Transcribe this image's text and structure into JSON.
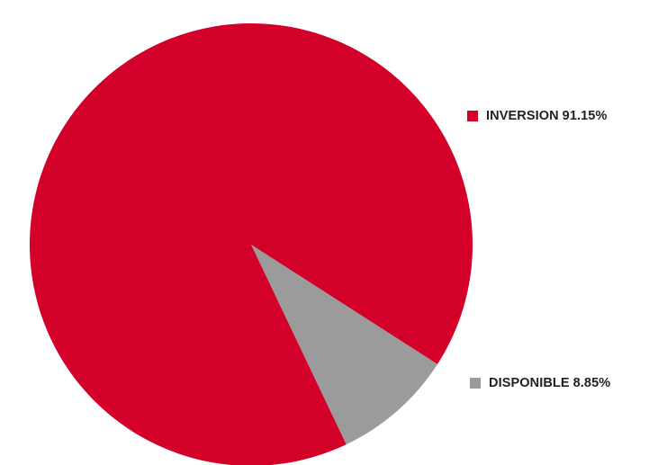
{
  "chart_data": {
    "type": "pie",
    "title": "",
    "slices": [
      {
        "label": "INVERSION",
        "value": 91.15,
        "value_text": "91.15%",
        "color": "#d3002a"
      },
      {
        "label": "DISPONIBLE",
        "value": 8.85,
        "value_text": "8.85%",
        "color": "#9b9b9b"
      }
    ],
    "legend": {
      "placement": "right"
    }
  }
}
